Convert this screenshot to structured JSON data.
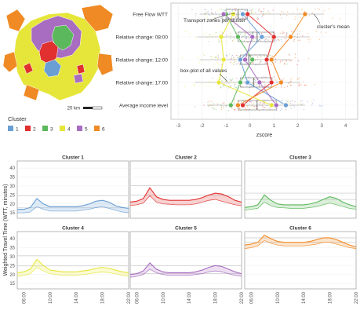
{
  "map": {
    "scale_label": "20 km"
  },
  "legend": {
    "title": "Cluster",
    "items": [
      {
        "label": "1",
        "color": "#6a9fd4"
      },
      {
        "label": "2",
        "color": "#e0302f"
      },
      {
        "label": "3",
        "color": "#5cb85c"
      },
      {
        "label": "4",
        "color": "#e6e63a"
      },
      {
        "label": "5",
        "color": "#a86cc1"
      },
      {
        "label": "6",
        "color": "#f08a24"
      }
    ]
  },
  "chart_data": [
    {
      "type": "scatter",
      "xlabel": "zscore",
      "xlim": [
        -3.3,
        4.5
      ],
      "xticks": [
        -3,
        -2,
        -1,
        0,
        1,
        2,
        3,
        4
      ],
      "categories": [
        "Free Flow WTT",
        "Relative change: 08:00",
        "Relative change: 12:00",
        "Relative change: 17:00",
        "Average income level"
      ],
      "annotations": [
        "Transport zones per cluster",
        "cluster's mean",
        "box-plot of all values"
      ],
      "series": [
        {
          "color": "#6a9fd4",
          "values": [
            -0.3,
            0.5,
            -0.4,
            -0.1,
            1.5
          ]
        },
        {
          "color": "#e0302f",
          "values": [
            -0.1,
            1.0,
            0.7,
            0.9,
            -0.3
          ]
        },
        {
          "color": "#5cb85c",
          "values": [
            -1.0,
            -0.5,
            0.1,
            -0.4,
            -0.8
          ]
        },
        {
          "color": "#e6e63a",
          "values": [
            -0.7,
            -1.2,
            -1.1,
            -1.3,
            0.9
          ]
        },
        {
          "color": "#a86cc1",
          "values": [
            -1.1,
            0.1,
            -0.2,
            0.4,
            1.1
          ]
        },
        {
          "color": "#f08a24",
          "values": [
            2.3,
            1.7,
            0.9,
            1.3,
            -0.5
          ]
        }
      ]
    },
    {
      "type": "area",
      "ylabel": "Weighted Travel Time (WTT, minutes)",
      "ylim": [
        12,
        44
      ],
      "yticks": [
        15,
        20,
        25,
        30,
        35,
        40
      ],
      "xlim": [
        5,
        22
      ],
      "xticks": [
        "06:00",
        "10:00",
        "14:00",
        "18:00",
        "22:00"
      ],
      "x": [
        5,
        6,
        7,
        8,
        9,
        10,
        11,
        12,
        13,
        14,
        15,
        16,
        17,
        18,
        19,
        20,
        21,
        22
      ],
      "panels": [
        {
          "title": "Cluster 1",
          "color": "#6a9fd4",
          "ref_lines": [
            17.8,
            24.5
          ],
          "upper": [
            17,
            17,
            18,
            23,
            20,
            18.5,
            18.5,
            18.5,
            18.5,
            18.5,
            19,
            20,
            21.5,
            22,
            21,
            19,
            18,
            17.5
          ],
          "lower": [
            15,
            15,
            15.5,
            18.5,
            17,
            16,
            16,
            16,
            16,
            16,
            16.5,
            17,
            18,
            18.5,
            17.5,
            16.5,
            15.5,
            15
          ]
        },
        {
          "title": "Cluster 2",
          "color": "#e0302f",
          "ref_lines": [
            24.8,
            30.2
          ],
          "upper": [
            21,
            21.5,
            23,
            29,
            24,
            22.5,
            22,
            22,
            22,
            22,
            22.5,
            23.5,
            25,
            26,
            25.5,
            24,
            22,
            21
          ],
          "lower": [
            19,
            19.5,
            20.5,
            24.5,
            21,
            20,
            19.8,
            19.5,
            19.5,
            19.5,
            20,
            21,
            22,
            22.5,
            21.5,
            20.5,
            19.5,
            19
          ]
        },
        {
          "title": "Cluster 3",
          "color": "#5cb85c",
          "ref_lines": [
            22.5,
            26.0
          ],
          "upper": [
            18,
            18.5,
            19.5,
            25,
            22,
            20,
            19.5,
            19.5,
            19.5,
            19.5,
            20,
            21,
            22.5,
            24,
            23,
            21,
            19.5,
            18.5
          ],
          "lower": [
            16.5,
            17,
            17.5,
            21,
            19,
            18,
            17.8,
            17.5,
            17.5,
            17.5,
            18,
            18.5,
            19.5,
            20.5,
            19.5,
            18.5,
            17.5,
            17
          ]
        },
        {
          "title": "Cluster 4",
          "color": "#e6e63a",
          "ref_lines": [
            24.8,
            30.5
          ],
          "upper": [
            21,
            21.5,
            23,
            28.5,
            25,
            22.5,
            22,
            21.5,
            21.5,
            21.5,
            22,
            22.5,
            23.5,
            24,
            23.5,
            22.5,
            21.5,
            21
          ],
          "lower": [
            19,
            19.5,
            20.5,
            24,
            22,
            20.5,
            20,
            19.5,
            19.5,
            19.5,
            20,
            20.5,
            21,
            21.5,
            21,
            20.5,
            19.5,
            19
          ]
        },
        {
          "title": "Cluster 5",
          "color": "#a86cc1",
          "ref_lines": [
            20.5,
            25.0
          ],
          "upper": [
            20,
            20.5,
            22,
            26.5,
            23,
            21.5,
            21,
            21,
            21,
            21,
            21.5,
            22.5,
            24,
            25,
            24.5,
            23,
            21.5,
            20.5
          ],
          "lower": [
            18.5,
            19,
            20,
            23,
            21,
            20,
            19.5,
            19.5,
            19.5,
            19.5,
            20,
            20.5,
            21.5,
            22,
            21.5,
            20.5,
            19.5,
            19
          ]
        },
        {
          "title": "Cluster 6",
          "color": "#f08a24",
          "ref_lines": [
            38.0,
            40.5
          ],
          "upper": [
            36.5,
            37,
            38,
            42,
            40,
            38.5,
            38,
            38,
            38,
            38,
            38.5,
            39.5,
            40.5,
            40.5,
            39.5,
            38,
            36.5,
            35.5
          ],
          "lower": [
            34.5,
            35,
            36,
            39,
            37.5,
            36.5,
            36,
            36,
            36,
            36,
            36.5,
            37,
            38,
            38,
            37,
            36,
            35,
            34.5
          ]
        }
      ]
    }
  ]
}
